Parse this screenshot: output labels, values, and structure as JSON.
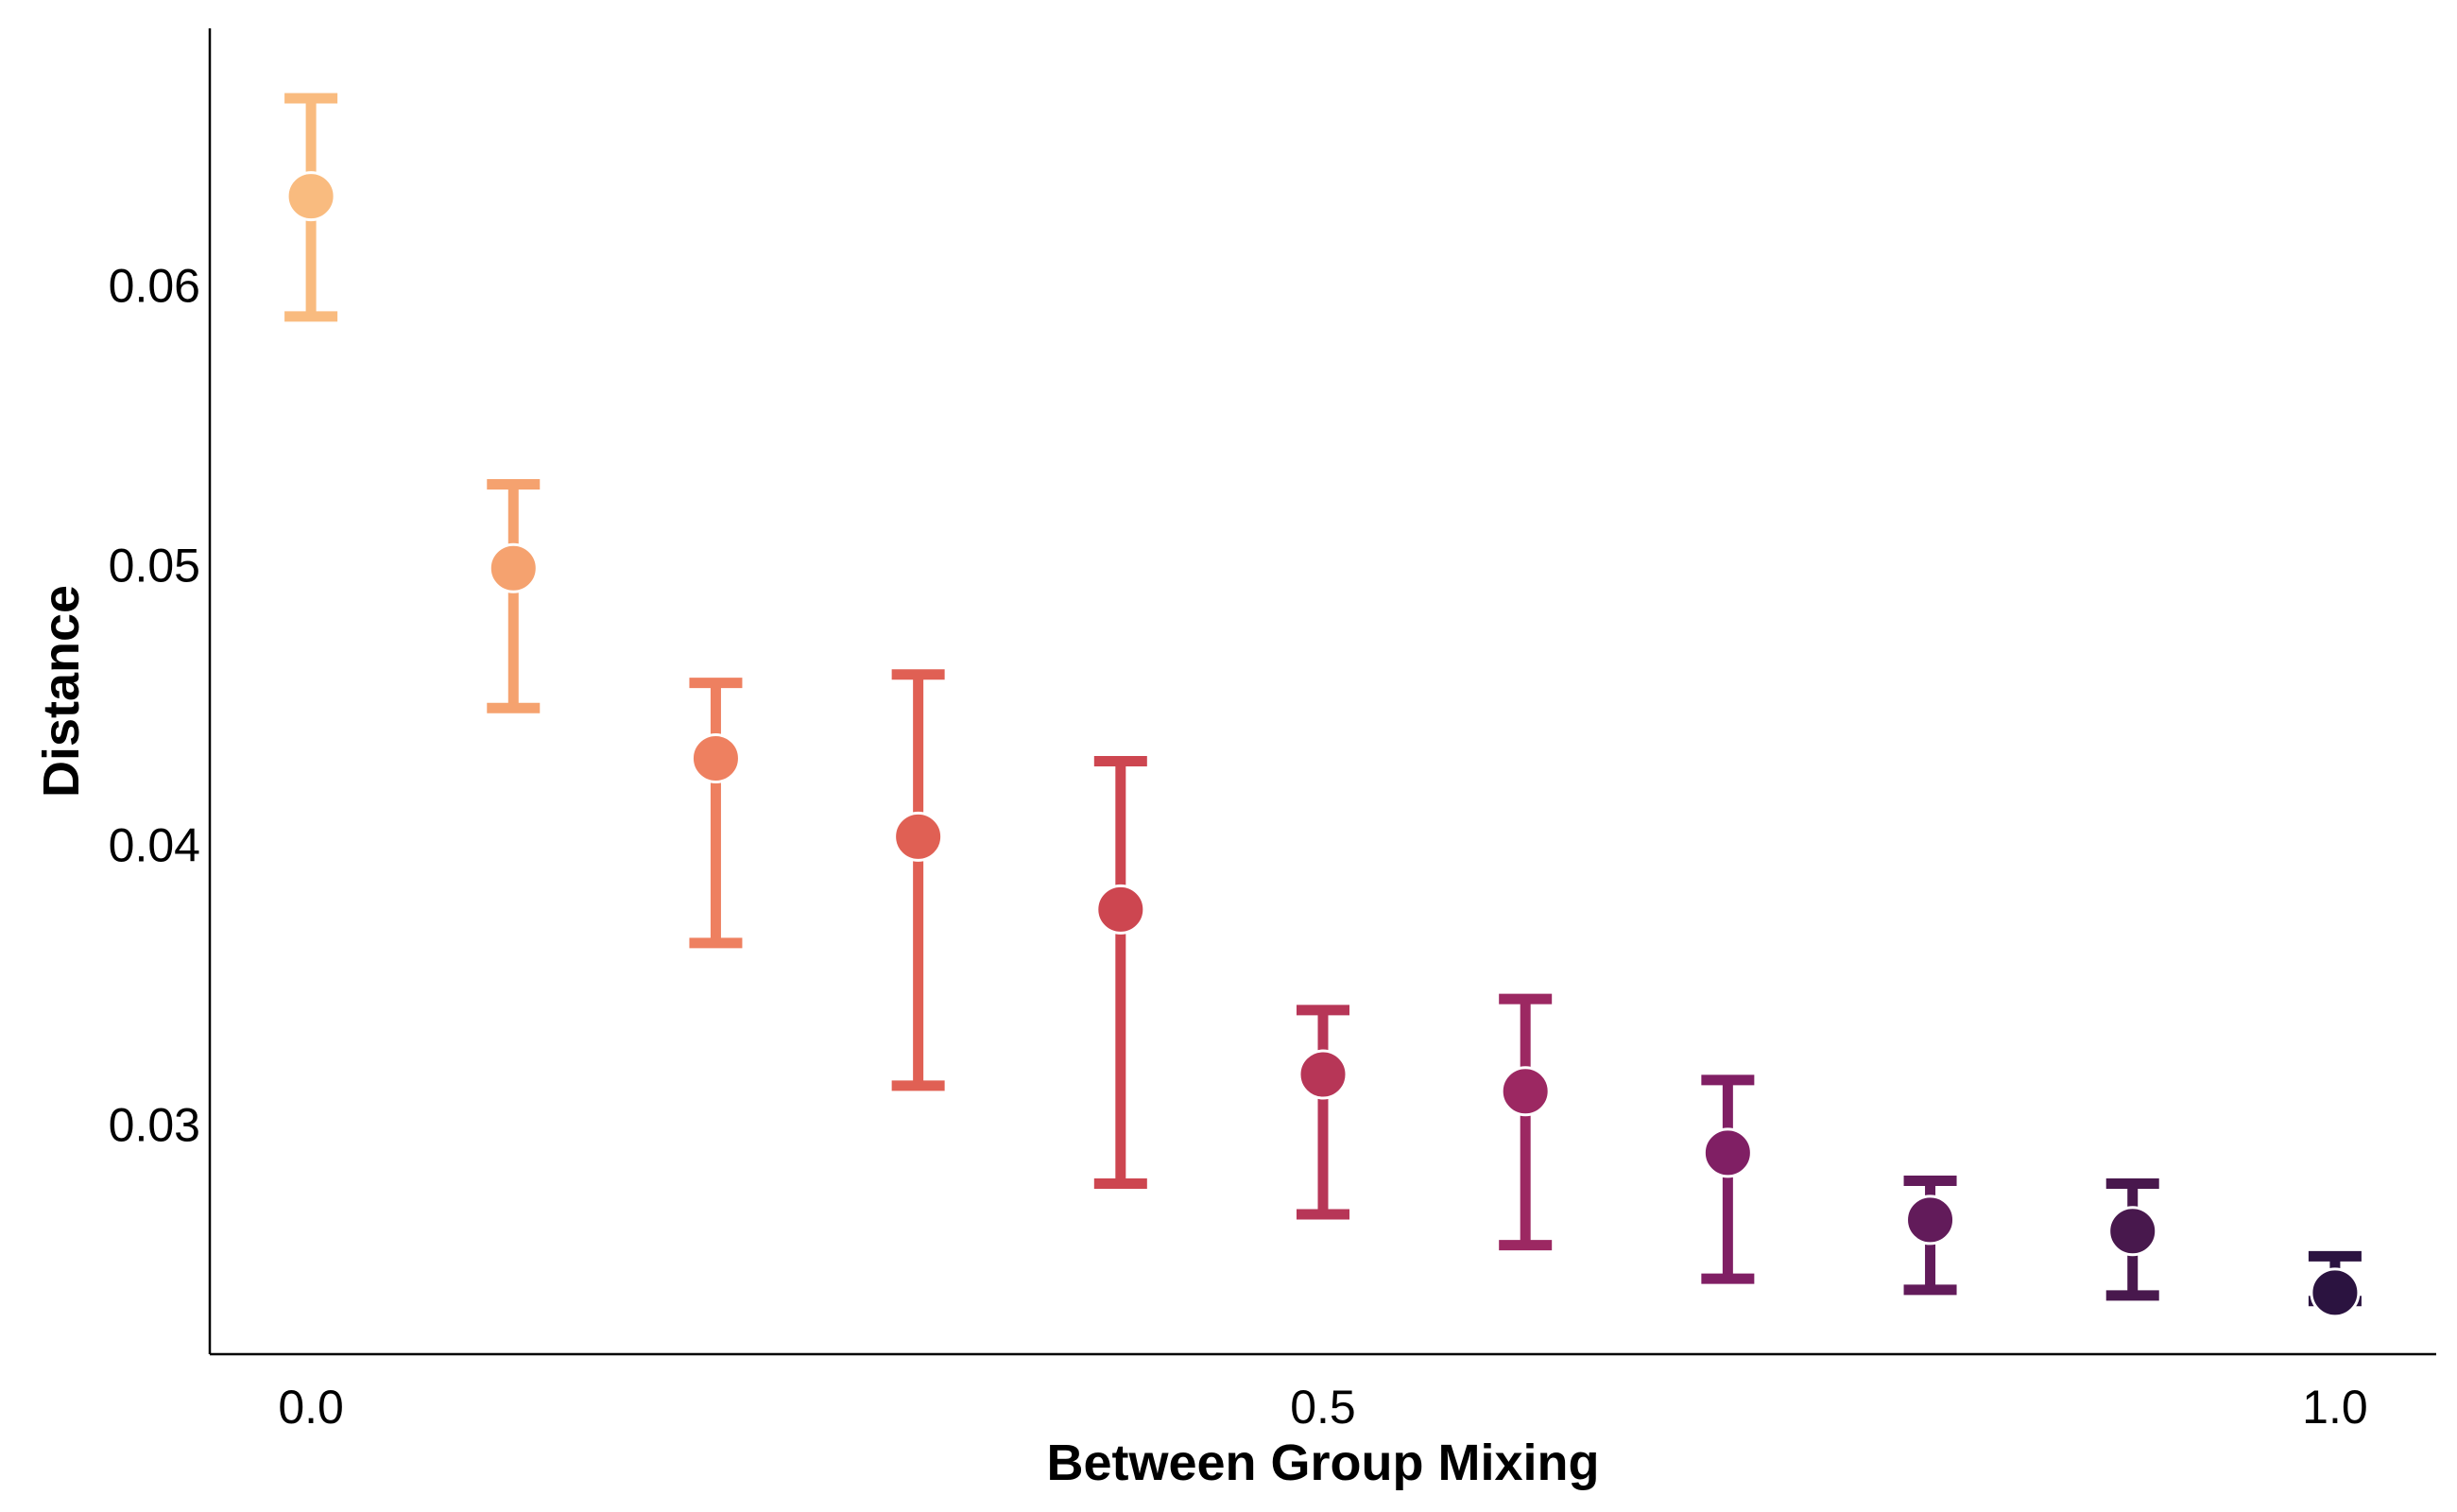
{
  "chart_data": {
    "type": "scatter",
    "title": "",
    "xlabel": "Between Group Mixing",
    "ylabel": "Distance",
    "xlim": [
      -0.05,
      1.05
    ],
    "ylim": [
      0.0218,
      0.0692
    ],
    "xticks": [
      0.0,
      0.5,
      1.0
    ],
    "xtick_labels": [
      "0.0",
      "0.5",
      "1.0"
    ],
    "yticks": [
      0.03,
      0.04,
      0.05,
      0.06
    ],
    "ytick_labels": [
      "0.03",
      "0.04",
      "0.05",
      "0.06"
    ],
    "grid": false,
    "legend": "none",
    "points": [
      {
        "x": 0.0,
        "y": 0.0632,
        "lower": 0.0589,
        "upper": 0.0667,
        "color": "#f9bb7f"
      },
      {
        "x": 0.1,
        "y": 0.0499,
        "lower": 0.0449,
        "upper": 0.0529,
        "color": "#f5a26f"
      },
      {
        "x": 0.2,
        "y": 0.0431,
        "lower": 0.0365,
        "upper": 0.0458,
        "color": "#ee8060"
      },
      {
        "x": 0.3,
        "y": 0.0403,
        "lower": 0.0314,
        "upper": 0.0461,
        "color": "#e06054"
      },
      {
        "x": 0.4,
        "y": 0.0377,
        "lower": 0.0279,
        "upper": 0.043,
        "color": "#cd4650"
      },
      {
        "x": 0.5,
        "y": 0.0318,
        "lower": 0.0268,
        "upper": 0.0341,
        "color": "#b73657"
      },
      {
        "x": 0.6,
        "y": 0.0312,
        "lower": 0.0257,
        "upper": 0.0345,
        "color": "#9c2862"
      },
      {
        "x": 0.7,
        "y": 0.029,
        "lower": 0.0245,
        "upper": 0.0316,
        "color": "#801f64"
      },
      {
        "x": 0.8,
        "y": 0.0266,
        "lower": 0.0241,
        "upper": 0.028,
        "color": "#621b5a"
      },
      {
        "x": 0.9,
        "y": 0.0262,
        "lower": 0.0239,
        "upper": 0.0279,
        "color": "#48184d"
      },
      {
        "x": 1.0,
        "y": 0.024,
        "lower": 0.0237,
        "upper": 0.0253,
        "color": "#2b1340"
      }
    ]
  }
}
